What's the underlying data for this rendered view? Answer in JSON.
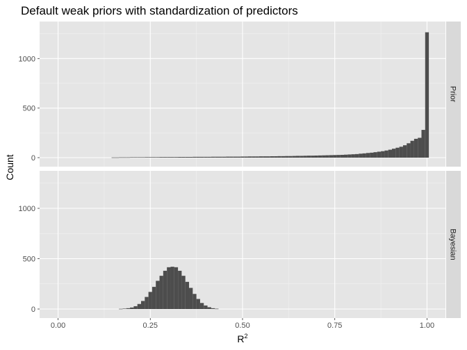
{
  "chart_data": {
    "type": "bar",
    "title": "Default weak priors with standardization of predictors",
    "xlabel": "R",
    "xlabel_superscript": "2",
    "ylabel": "Count",
    "xlim": [
      -0.05,
      1.05
    ],
    "ylim": [
      0,
      1300
    ],
    "x_ticks": [
      0.0,
      0.25,
      0.5,
      0.75,
      1.0
    ],
    "x_tick_labels": [
      "0.00",
      "0.25",
      "0.50",
      "0.75",
      "1.00"
    ],
    "y_ticks": [
      0,
      500,
      1000
    ],
    "y_tick_labels": [
      "0",
      "500",
      "1000"
    ],
    "bin_width": 0.01,
    "grid": true,
    "panel_background": "#e5e5e5",
    "strip_background": "#d9d9d9",
    "bar_color": "#4d4d4d",
    "panels": [
      {
        "strip_label": "Prior",
        "bin_centers": [
          0.15,
          0.16,
          0.17,
          0.18,
          0.19,
          0.2,
          0.21,
          0.22,
          0.23,
          0.24,
          0.25,
          0.26,
          0.27,
          0.28,
          0.29,
          0.3,
          0.31,
          0.32,
          0.33,
          0.34,
          0.35,
          0.36,
          0.37,
          0.38,
          0.39,
          0.4,
          0.41,
          0.42,
          0.43,
          0.44,
          0.45,
          0.46,
          0.47,
          0.48,
          0.49,
          0.5,
          0.51,
          0.52,
          0.53,
          0.54,
          0.55,
          0.56,
          0.57,
          0.58,
          0.59,
          0.6,
          0.61,
          0.62,
          0.63,
          0.64,
          0.65,
          0.66,
          0.67,
          0.68,
          0.69,
          0.7,
          0.71,
          0.72,
          0.73,
          0.74,
          0.75,
          0.76,
          0.77,
          0.78,
          0.79,
          0.8,
          0.81,
          0.82,
          0.83,
          0.84,
          0.85,
          0.86,
          0.87,
          0.88,
          0.89,
          0.9,
          0.91,
          0.92,
          0.93,
          0.94,
          0.95,
          0.96,
          0.97,
          0.98,
          0.99,
          1.0
        ],
        "values": [
          2,
          2,
          3,
          3,
          3,
          4,
          4,
          4,
          4,
          5,
          5,
          5,
          5,
          6,
          6,
          6,
          6,
          6,
          7,
          7,
          7,
          7,
          8,
          8,
          8,
          8,
          8,
          9,
          9,
          9,
          9,
          10,
          10,
          10,
          10,
          11,
          11,
          12,
          12,
          12,
          13,
          13,
          13,
          14,
          14,
          15,
          15,
          16,
          16,
          17,
          18,
          18,
          19,
          20,
          20,
          21,
          22,
          23,
          24,
          25,
          26,
          27,
          28,
          30,
          32,
          34,
          36,
          40,
          43,
          47,
          50,
          55,
          60,
          65,
          72,
          80,
          90,
          100,
          110,
          125,
          145,
          170,
          190,
          200,
          280,
          1265
        ]
      },
      {
        "strip_label": "Bayesian",
        "bin_centers": [
          0.17,
          0.18,
          0.19,
          0.2,
          0.21,
          0.22,
          0.23,
          0.24,
          0.25,
          0.26,
          0.27,
          0.28,
          0.29,
          0.3,
          0.31,
          0.32,
          0.33,
          0.34,
          0.35,
          0.36,
          0.37,
          0.38,
          0.39,
          0.4,
          0.41,
          0.42,
          0.43
        ],
        "values": [
          2,
          4,
          8,
          15,
          28,
          50,
          80,
          120,
          170,
          220,
          280,
          330,
          380,
          415,
          420,
          415,
          380,
          330,
          270,
          210,
          150,
          100,
          60,
          35,
          18,
          8,
          3
        ]
      }
    ]
  }
}
